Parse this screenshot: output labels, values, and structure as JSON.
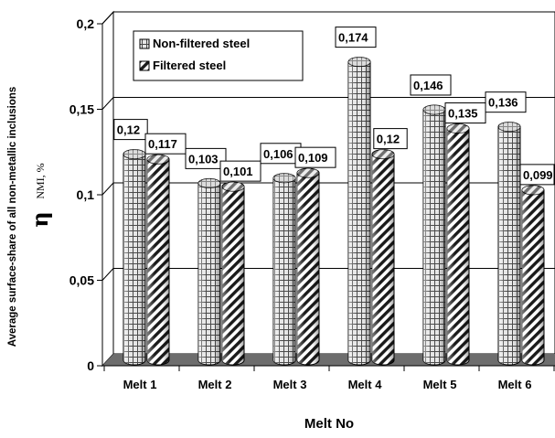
{
  "chart_data": {
    "type": "bar",
    "style": "3d-cylinder",
    "categories": [
      "Melt 1",
      "Melt 2",
      "Melt 3",
      "Melt 4",
      "Melt 5",
      "Melt 6"
    ],
    "series": [
      {
        "name": "Non-filtered steel",
        "values": [
          0.12,
          0.103,
          0.106,
          0.174,
          0.146,
          0.136
        ],
        "labels": [
          "0,12",
          "0,103",
          "0,106",
          "0,174",
          "0,146",
          "0,136"
        ]
      },
      {
        "name": "Filtered steel",
        "values": [
          0.117,
          0.101,
          0.109,
          0.12,
          0.135,
          0.099
        ],
        "labels": [
          "0,117",
          "0,101",
          "0,109",
          "0,12",
          "0,135",
          "0,099"
        ]
      }
    ],
    "xlabel": "Melt No",
    "ylabel": "Average surface-share of all non-metallic inclusions",
    "ylabel_symbol": "η",
    "ylabel_unit": "NMI, %",
    "ylim": [
      0,
      0.2
    ],
    "ticks": [
      {
        "value": 0,
        "label": "0"
      },
      {
        "value": 0.05,
        "label": "0,05"
      },
      {
        "value": 0.1,
        "label": "0,1"
      },
      {
        "value": 0.15,
        "label": "0,15"
      },
      {
        "value": 0.2,
        "label": "0,2"
      }
    ],
    "grid": true,
    "legend_position": "top-left"
  }
}
